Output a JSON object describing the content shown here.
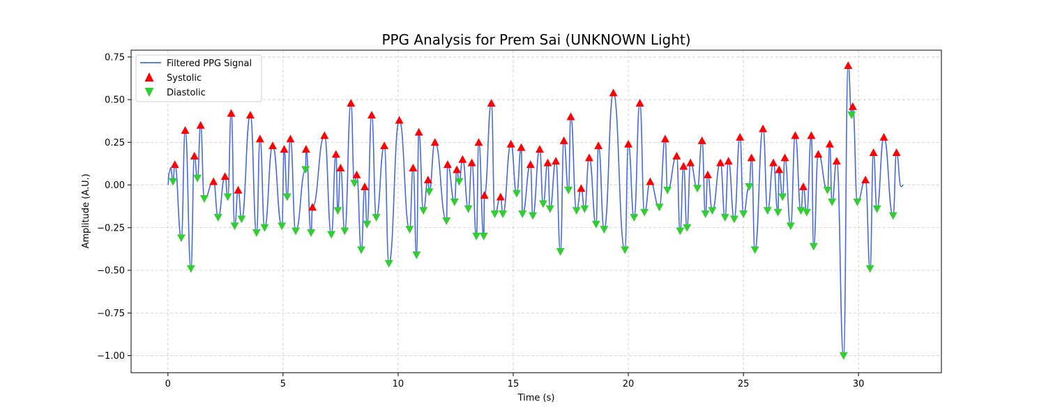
{
  "chart_data": {
    "type": "line",
    "title": "PPG Analysis for Prem Sai (UNKNOWN Light)",
    "xlabel": "Time (s)",
    "ylabel": "Amplitude (A.U.)",
    "xlim": [
      -1.6,
      33.6
    ],
    "ylim": [
      -1.1,
      0.79
    ],
    "xticks": [
      0,
      5,
      10,
      15,
      20,
      25,
      30
    ],
    "yticks": [
      -1.0,
      -0.75,
      -0.5,
      -0.25,
      0.0,
      0.25,
      0.5,
      0.75
    ],
    "ytick_labels": [
      "−1.00",
      "−0.75",
      "−0.50",
      "−0.25",
      "0.00",
      "0.25",
      "0.50",
      "0.75"
    ],
    "grid": true,
    "legend_position": "top-left",
    "legend": [
      "Filtered PPG Signal",
      "Systolic",
      "Diastolic"
    ],
    "colors": {
      "signal": "#4169e1",
      "systolic": "#ff0000",
      "diastolic": "#32cd32"
    },
    "systolic": {
      "name": "Systolic",
      "x": [
        0.3,
        0.75,
        1.15,
        1.42,
        1.98,
        2.48,
        2.75,
        3.05,
        3.58,
        4.0,
        4.55,
        5.05,
        5.32,
        6.0,
        6.28,
        6.8,
        7.3,
        7.5,
        7.95,
        8.2,
        8.55,
        8.85,
        9.4,
        10.05,
        10.65,
        10.9,
        11.3,
        11.6,
        12.15,
        12.55,
        12.8,
        13.2,
        13.5,
        13.75,
        14.05,
        14.45,
        14.9,
        15.35,
        15.75,
        16.15,
        16.5,
        16.85,
        17.2,
        17.5,
        17.95,
        18.3,
        18.7,
        19.35,
        20.0,
        20.5,
        20.95,
        21.6,
        22.1,
        22.4,
        22.7,
        23.2,
        23.45,
        24.0,
        24.35,
        24.85,
        25.35,
        25.85,
        26.3,
        26.55,
        26.8,
        27.25,
        27.6,
        27.95,
        28.25,
        28.75,
        29.05,
        29.55,
        29.75,
        30.3,
        30.65,
        31.1,
        31.65
      ],
      "y": [
        0.12,
        0.32,
        0.17,
        0.35,
        0.02,
        0.05,
        0.42,
        -0.03,
        0.41,
        0.27,
        0.23,
        0.21,
        0.27,
        0.21,
        -0.13,
        0.29,
        0.18,
        0.1,
        0.48,
        0.06,
        -0.01,
        0.41,
        0.23,
        0.38,
        0.1,
        0.31,
        0.03,
        0.25,
        0.12,
        0.09,
        0.15,
        0.13,
        0.25,
        -0.06,
        0.48,
        -0.07,
        0.24,
        0.22,
        0.12,
        0.21,
        0.13,
        0.14,
        0.26,
        0.4,
        -0.02,
        0.16,
        0.23,
        0.54,
        0.24,
        0.48,
        0.02,
        0.27,
        0.17,
        0.11,
        0.13,
        0.26,
        0.06,
        0.13,
        0.14,
        0.28,
        0.16,
        0.33,
        0.13,
        0.09,
        0.16,
        0.29,
        -0.01,
        0.29,
        0.18,
        0.24,
        0.14,
        0.7,
        0.46,
        0.03,
        0.19,
        0.28,
        0.19
      ]
    },
    "diastolic": {
      "name": "Diastolic",
      "x": [
        0.22,
        0.58,
        1.0,
        1.28,
        1.58,
        2.18,
        2.6,
        2.9,
        3.2,
        3.85,
        4.2,
        4.95,
        5.18,
        5.55,
        5.98,
        6.22,
        7.1,
        7.38,
        7.68,
        8.1,
        8.4,
        8.65,
        9.05,
        9.6,
        10.5,
        10.8,
        11.1,
        11.35,
        12.1,
        12.45,
        12.65,
        13.05,
        13.4,
        13.72,
        14.2,
        14.55,
        15.15,
        15.4,
        15.85,
        16.3,
        16.6,
        17.05,
        17.4,
        17.75,
        18.1,
        18.6,
        18.95,
        19.85,
        20.25,
        20.7,
        21.35,
        21.7,
        22.25,
        22.55,
        23.0,
        23.35,
        23.65,
        24.2,
        24.6,
        25.0,
        25.25,
        25.5,
        26.05,
        26.5,
        26.7,
        27.05,
        27.5,
        27.75,
        28.05,
        28.65,
        28.85,
        29.35,
        29.7,
        29.95,
        30.5,
        30.8,
        31.5
      ],
      "y": [
        0.02,
        -0.31,
        -0.49,
        0.04,
        -0.08,
        -0.19,
        -0.07,
        -0.24,
        -0.2,
        -0.28,
        -0.25,
        -0.24,
        -0.07,
        -0.27,
        0.09,
        -0.28,
        -0.29,
        -0.15,
        -0.27,
        0.01,
        -0.38,
        -0.23,
        -0.19,
        -0.46,
        -0.26,
        -0.41,
        -0.15,
        -0.04,
        -0.21,
        -0.1,
        0.02,
        -0.14,
        -0.3,
        -0.3,
        -0.17,
        -0.17,
        -0.05,
        -0.17,
        -0.18,
        -0.11,
        -0.14,
        -0.39,
        -0.03,
        -0.15,
        -0.14,
        -0.23,
        -0.26,
        -0.38,
        -0.19,
        -0.16,
        -0.13,
        -0.03,
        -0.27,
        -0.25,
        -0.02,
        -0.17,
        -0.15,
        -0.19,
        -0.2,
        -0.17,
        -0.01,
        -0.38,
        -0.15,
        -0.16,
        -0.07,
        -0.24,
        -0.15,
        -0.16,
        -0.36,
        -0.03,
        -0.1,
        -1.0,
        0.41,
        -0.1,
        -0.49,
        -0.14,
        -0.18
      ]
    },
    "signal_extra": {
      "x": [
        0.0,
        0.05,
        0.12,
        31.85,
        31.95
      ],
      "y": [
        0.0,
        0.07,
        0.1,
        -0.01,
        0.0
      ]
    }
  }
}
